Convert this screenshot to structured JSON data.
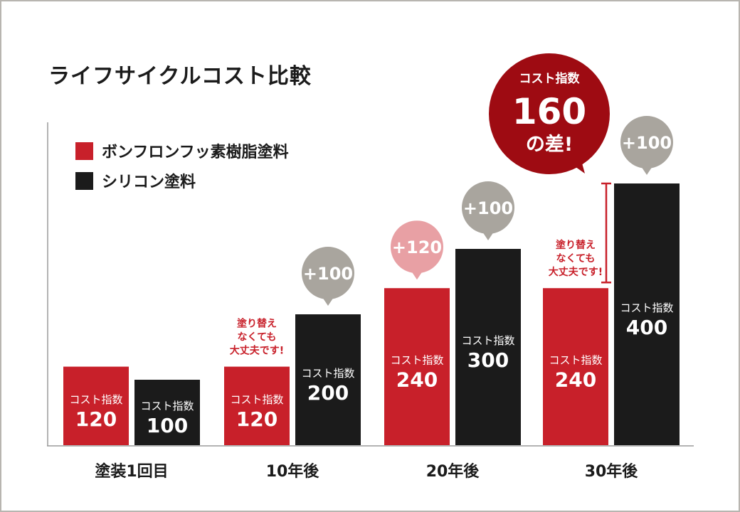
{
  "title": "ライフサイクルコスト比較",
  "colors": {
    "red": "#c8202a",
    "black": "#1b1b1b",
    "pink": "#e8a0a4",
    "gray": "#a9a59e",
    "dark_red": "#9e0b12"
  },
  "legend": [
    {
      "label": "ボンフロンフッ素樹脂塗料",
      "color": "#c8202a"
    },
    {
      "label": "シリコン塗料",
      "color": "#1b1b1b"
    }
  ],
  "chart_data": {
    "type": "bar",
    "title": "ライフサイクルコスト比較",
    "categories": [
      "塗装1回目",
      "10年後",
      "20年後",
      "30年後"
    ],
    "series": [
      {
        "name": "ボンフロンフッ素樹脂塗料",
        "values": [
          120,
          120,
          240,
          240
        ]
      },
      {
        "name": "シリコン塗料",
        "values": [
          100,
          200,
          300,
          400
        ]
      }
    ],
    "value_label": "コスト指数",
    "increments": [
      {
        "category": "10年後",
        "series": "シリコン塗料",
        "text": "+100"
      },
      {
        "category": "20年後",
        "series": "ボンフロンフッ素樹脂塗料",
        "text": "+120"
      },
      {
        "category": "20年後",
        "series": "シリコン塗料",
        "text": "+100"
      },
      {
        "category": "30年後",
        "series": "シリコン塗料",
        "text": "+100"
      }
    ],
    "notes": [
      {
        "category": "10年後",
        "lines": [
          "塗り替え",
          "なくても",
          "大丈夫です!"
        ]
      },
      {
        "category": "30年後",
        "lines": [
          "塗り替え",
          "なくても",
          "大丈夫です!"
        ]
      }
    ],
    "difference": {
      "label": "コスト指数",
      "value": "160",
      "suffix": "の差!"
    },
    "ylim": [
      0,
      400
    ]
  }
}
